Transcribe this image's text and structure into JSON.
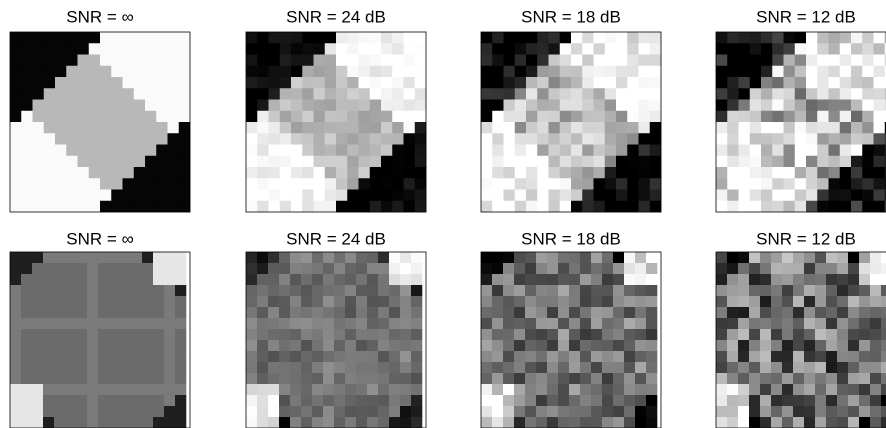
{
  "panels": [
    {
      "title": "SNR = ∞"
    },
    {
      "title": "SNR = 24 dB"
    },
    {
      "title": "SNR = 18 dB"
    },
    {
      "title": "SNR = 12 dB"
    },
    {
      "title": "SNR = ∞"
    },
    {
      "title": "SNR = 24 dB"
    },
    {
      "title": "SNR = 18 dB"
    },
    {
      "title": "SNR = 12 dB"
    }
  ]
}
